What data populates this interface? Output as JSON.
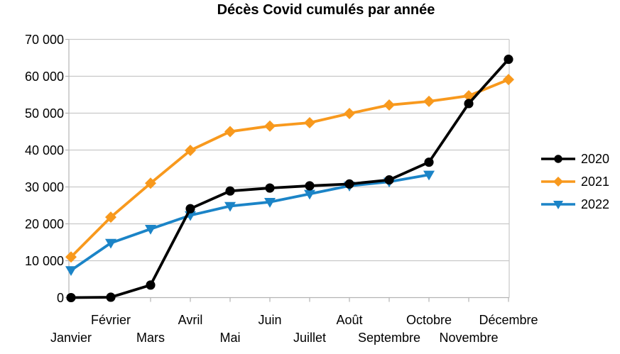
{
  "chart_data": {
    "type": "line",
    "title": "Décès Covid cumulés par année",
    "categories": [
      "Janvier",
      "Février",
      "Mars",
      "Avril",
      "Mai",
      "Juin",
      "Juillet",
      "Août",
      "Septembre",
      "Octobre",
      "Novembre",
      "Décembre"
    ],
    "series": [
      {
        "name": "2020",
        "color": "#000000",
        "marker": "circle",
        "values": [
          0,
          100,
          3400,
          24100,
          28900,
          29700,
          30300,
          30800,
          31900,
          36700,
          52600,
          64600
        ]
      },
      {
        "name": "2021",
        "color": "#F8991D",
        "marker": "diamond",
        "values": [
          11000,
          21800,
          31000,
          39900,
          45000,
          46500,
          47400,
          49900,
          52200,
          53200,
          54700,
          59100
        ]
      },
      {
        "name": "2022",
        "color": "#1B84C7",
        "marker": "triangle-down",
        "values": [
          7400,
          14800,
          18600,
          22300,
          24800,
          25900,
          28100,
          30300,
          31400,
          33300,
          null,
          null
        ]
      }
    ],
    "ylim": [
      0,
      70000
    ],
    "y_tick_step": 10000,
    "y_tick_labels": [
      "0",
      "10 000",
      "20 000",
      "30 000",
      "40 000",
      "50 000",
      "60 000",
      "70 000"
    ],
    "xlabel": "",
    "ylabel": "",
    "grid": "horizontal",
    "legend_position": "right",
    "colors": {
      "gridline": "#C8C8C8",
      "axis": "#B3B3B3",
      "text": "#000000",
      "background": "#FFFFFF"
    }
  }
}
